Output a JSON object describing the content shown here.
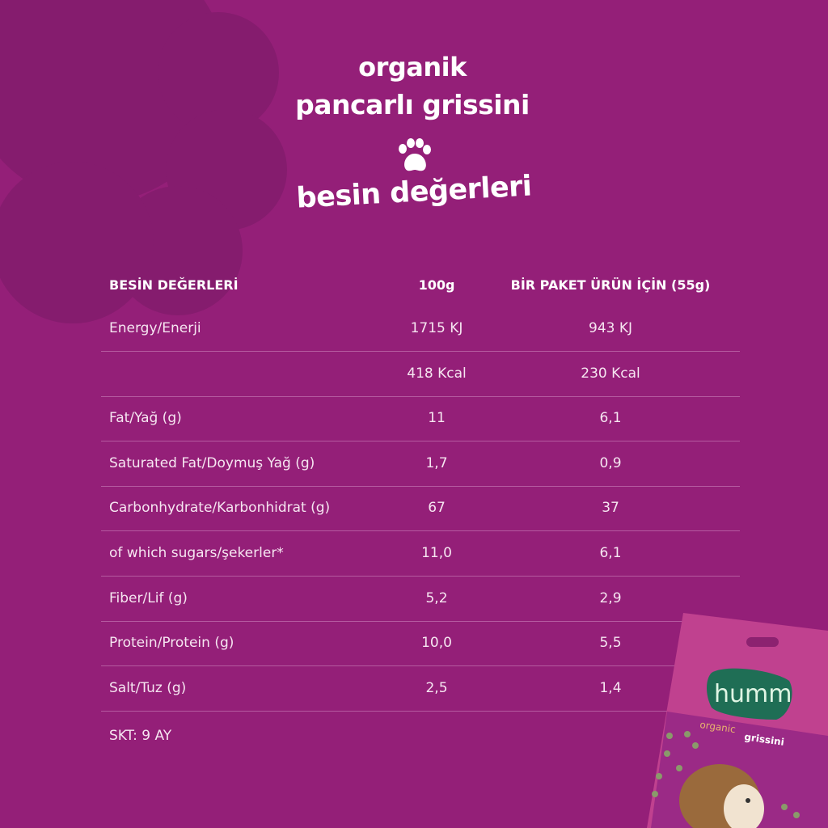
{
  "heading": {
    "line1": "organik",
    "line2": "pancarlı grissini",
    "line3": "besin değerleri"
  },
  "colors": {
    "background": "#941f78",
    "flower": "#851c6e",
    "separator": "#b55aa0",
    "text": "#ffffff"
  },
  "table": {
    "headers": [
      "BESİN DEĞERLERİ",
      "100g",
      "BİR PAKET ÜRÜN İÇİN (55g)"
    ],
    "rows": [
      [
        "Energy/Enerji",
        "1715 KJ",
        "943 KJ"
      ],
      [
        "",
        "418 Kcal",
        "230 Kcal"
      ],
      [
        "Fat/Yağ (g)",
        "11",
        "6,1"
      ],
      [
        "Saturated Fat/Doymuş Yağ (g)",
        "1,7",
        "0,9"
      ],
      [
        "Carbonhydrate/Karbonhidrat (g)",
        "67",
        "37"
      ],
      [
        "of which sugars/şekerler*",
        "11,0",
        "6,1"
      ],
      [
        "Fiber/Lif (g)",
        "5,2",
        "2,9"
      ],
      [
        "Protein/Protein (g)",
        "10,0",
        "5,5"
      ],
      [
        "Salt/Tuz (g)",
        "2,5",
        "1,4"
      ]
    ]
  },
  "footer": {
    "shelf_life": "SKT: 9 AY"
  },
  "package": {
    "brand": "humm",
    "product": "organic grissini",
    "icon": "hedgehog"
  }
}
